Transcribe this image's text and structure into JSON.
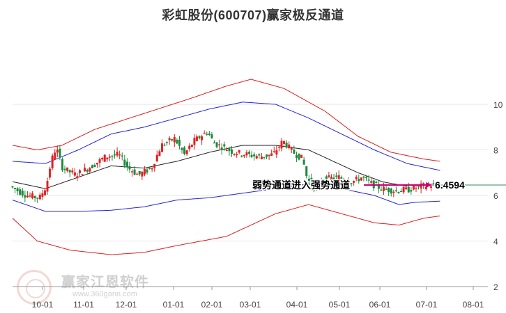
{
  "title": "彩虹股份(600707)赢家极反通道",
  "watermark": {
    "text": "赢家江恩软件",
    "url": "www.360gann.com"
  },
  "colors": {
    "up": "#e02020",
    "down": "#1a8a3a",
    "outer_band": "#e21b1b",
    "inner_band": "#2222dd",
    "midline": "#222222",
    "ref_line": "#2e8b57",
    "arrow": "#cc0077",
    "grid": "#e6e6e6"
  },
  "annotation": {
    "text": "弱势通道进入强势通道",
    "value_label": "6.4594"
  },
  "chart_data": {
    "type": "candlestick",
    "title": "彩虹股份(600707)赢家极反通道",
    "x_ticks": [
      "10-01",
      "11-01",
      "12-01",
      "01-01",
      "02-01",
      "03-01",
      "04-01",
      "05-01",
      "06-01",
      "07-01",
      "08-01"
    ],
    "y_ticks": [
      "2",
      "4",
      "6",
      "8",
      "10"
    ],
    "ylim": [
      2,
      11.7
    ],
    "reference_value": 6.4594,
    "price_path": [
      {
        "t": 0,
        "p": 6.4
      },
      {
        "t": 10,
        "p": 6.0
      },
      {
        "t": 18,
        "p": 5.9
      },
      {
        "t": 22,
        "p": 6.4
      },
      {
        "t": 25,
        "p": 7.5
      },
      {
        "t": 28,
        "p": 8.1
      },
      {
        "t": 32,
        "p": 7.2
      },
      {
        "t": 40,
        "p": 6.9
      },
      {
        "t": 50,
        "p": 7.3
      },
      {
        "t": 58,
        "p": 7.7
      },
      {
        "t": 66,
        "p": 7.8
      },
      {
        "t": 72,
        "p": 7.2
      },
      {
        "t": 78,
        "p": 6.9
      },
      {
        "t": 86,
        "p": 7.2
      },
      {
        "t": 92,
        "p": 8.2
      },
      {
        "t": 100,
        "p": 8.5
      },
      {
        "t": 106,
        "p": 7.8
      },
      {
        "t": 112,
        "p": 8.4
      },
      {
        "t": 120,
        "p": 8.8
      },
      {
        "t": 124,
        "p": 8.3
      },
      {
        "t": 130,
        "p": 8.1
      },
      {
        "t": 136,
        "p": 7.9
      },
      {
        "t": 144,
        "p": 7.8
      },
      {
        "t": 152,
        "p": 7.7
      },
      {
        "t": 160,
        "p": 7.8
      },
      {
        "t": 166,
        "p": 8.4
      },
      {
        "t": 172,
        "p": 7.9
      },
      {
        "t": 178,
        "p": 7.6
      },
      {
        "t": 180,
        "p": 6.9
      },
      {
        "t": 184,
        "p": 6.3
      },
      {
        "t": 190,
        "p": 6.7
      },
      {
        "t": 200,
        "p": 6.8
      },
      {
        "t": 208,
        "p": 6.6
      },
      {
        "t": 214,
        "p": 6.8
      },
      {
        "t": 220,
        "p": 6.5
      },
      {
        "t": 226,
        "p": 6.3
      },
      {
        "t": 234,
        "p": 6.2
      },
      {
        "t": 242,
        "p": 6.25
      },
      {
        "t": 250,
        "p": 6.4
      },
      {
        "t": 256,
        "p": 6.45
      }
    ],
    "midline": [
      {
        "t": 0,
        "v": 6.6
      },
      {
        "t": 20,
        "v": 6.3
      },
      {
        "t": 40,
        "v": 6.8
      },
      {
        "t": 60,
        "v": 7.3
      },
      {
        "t": 80,
        "v": 7.2
      },
      {
        "t": 100,
        "v": 7.5
      },
      {
        "t": 120,
        "v": 7.9
      },
      {
        "t": 140,
        "v": 8.2
      },
      {
        "t": 160,
        "v": 8.2
      },
      {
        "t": 180,
        "v": 8.0
      },
      {
        "t": 195,
        "v": 7.5
      },
      {
        "t": 210,
        "v": 7.0
      },
      {
        "t": 225,
        "v": 6.6
      },
      {
        "t": 240,
        "v": 6.4
      }
    ],
    "inner_upper": [
      {
        "t": 0,
        "v": 7.5
      },
      {
        "t": 20,
        "v": 7.4
      },
      {
        "t": 40,
        "v": 8.0
      },
      {
        "t": 60,
        "v": 8.7
      },
      {
        "t": 80,
        "v": 9.0
      },
      {
        "t": 100,
        "v": 9.4
      },
      {
        "t": 120,
        "v": 9.8
      },
      {
        "t": 140,
        "v": 10.1
      },
      {
        "t": 160,
        "v": 10.0
      },
      {
        "t": 180,
        "v": 9.4
      },
      {
        "t": 200,
        "v": 8.7
      },
      {
        "t": 220,
        "v": 8.0
      },
      {
        "t": 240,
        "v": 7.4
      },
      {
        "t": 260,
        "v": 7.1
      }
    ],
    "inner_lower": [
      {
        "t": 0,
        "v": 5.8
      },
      {
        "t": 20,
        "v": 5.3
      },
      {
        "t": 40,
        "v": 5.3
      },
      {
        "t": 60,
        "v": 5.35
      },
      {
        "t": 80,
        "v": 5.5
      },
      {
        "t": 100,
        "v": 5.8
      },
      {
        "t": 120,
        "v": 5.9
      },
      {
        "t": 140,
        "v": 6.1
      },
      {
        "t": 160,
        "v": 6.3
      },
      {
        "t": 180,
        "v": 6.5
      },
      {
        "t": 200,
        "v": 6.3
      },
      {
        "t": 220,
        "v": 6.0
      },
      {
        "t": 235,
        "v": 5.6
      },
      {
        "t": 245,
        "v": 5.7
      },
      {
        "t": 260,
        "v": 5.75
      }
    ],
    "outer_upper": [
      {
        "t": 0,
        "v": 8.2
      },
      {
        "t": 15,
        "v": 8.0
      },
      {
        "t": 30,
        "v": 8.2
      },
      {
        "t": 50,
        "v": 8.9
      },
      {
        "t": 80,
        "v": 9.6
      },
      {
        "t": 110,
        "v": 10.3
      },
      {
        "t": 130,
        "v": 10.8
      },
      {
        "t": 145,
        "v": 11.1
      },
      {
        "t": 165,
        "v": 10.7
      },
      {
        "t": 190,
        "v": 9.7
      },
      {
        "t": 210,
        "v": 8.6
      },
      {
        "t": 230,
        "v": 7.9
      },
      {
        "t": 250,
        "v": 7.6
      },
      {
        "t": 260,
        "v": 7.5
      }
    ],
    "outer_lower": [
      {
        "t": 0,
        "v": 5.0
      },
      {
        "t": 15,
        "v": 4.0
      },
      {
        "t": 35,
        "v": 3.6
      },
      {
        "t": 60,
        "v": 3.4
      },
      {
        "t": 80,
        "v": 3.5
      },
      {
        "t": 100,
        "v": 3.8
      },
      {
        "t": 130,
        "v": 4.2
      },
      {
        "t": 160,
        "v": 5.2
      },
      {
        "t": 180,
        "v": 5.6
      },
      {
        "t": 200,
        "v": 5.2
      },
      {
        "t": 220,
        "v": 4.8
      },
      {
        "t": 235,
        "v": 4.7
      },
      {
        "t": 250,
        "v": 5.0
      },
      {
        "t": 260,
        "v": 5.1
      }
    ]
  }
}
